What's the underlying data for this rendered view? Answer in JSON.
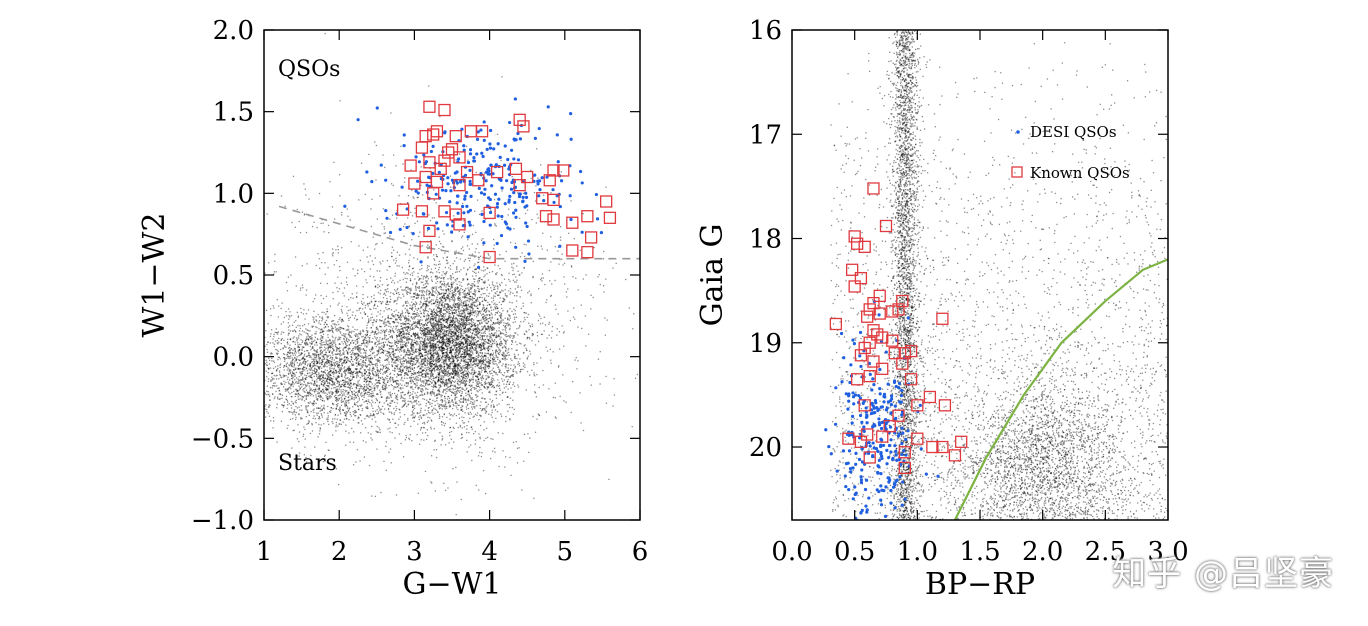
{
  "chart_data": [
    {
      "type": "scatter",
      "xlabel": "G−W1",
      "ylabel": "W1−W2",
      "xlim": [
        1,
        6
      ],
      "ylim": [
        -1.0,
        2.0
      ],
      "xticks": [
        "1",
        "2",
        "3",
        "4",
        "5",
        "6"
      ],
      "yticks": [
        "−1.0",
        "−0.5",
        "0.0",
        "0.5",
        "1.0",
        "1.5",
        "2.0"
      ],
      "annotations": [
        "QSOs",
        "Stars"
      ],
      "divider": {
        "style": "dashed",
        "points": [
          [
            1.2,
            0.92
          ],
          [
            3.0,
            0.68
          ],
          [
            4.0,
            0.6
          ],
          [
            6.0,
            0.6
          ]
        ]
      },
      "series": [
        {
          "role": "background-stars",
          "color": "#000000",
          "clusters": [
            {
              "cx": 3.45,
              "cy": 0.08,
              "sx": 0.45,
              "sy": 0.22,
              "n": 5200
            },
            {
              "cx": 1.9,
              "cy": -0.08,
              "sx": 0.5,
              "sy": 0.17,
              "n": 2600
            },
            {
              "cx": 3.2,
              "cy": 0.25,
              "sx": 1.2,
              "sy": 0.45,
              "n": 1400
            }
          ]
        },
        {
          "role": "DESI QSOs",
          "color": "#1f5fe0",
          "clusters": [
            {
              "cx": 3.95,
              "cy": 1.05,
              "sx": 0.6,
              "sy": 0.2,
              "n": 260
            }
          ]
        },
        {
          "role": "Known QSOs",
          "color": "#e0393e",
          "marker": "open-square",
          "points": [
            [
              3.2,
              1.53
            ],
            [
              3.4,
              1.51
            ],
            [
              3.3,
              1.38
            ],
            [
              3.25,
              1.36
            ],
            [
              3.15,
              1.35
            ],
            [
              3.55,
              1.35
            ],
            [
              3.75,
              1.38
            ],
            [
              3.9,
              1.38
            ],
            [
              4.4,
              1.45
            ],
            [
              4.45,
              1.41
            ],
            [
              3.1,
              1.28
            ],
            [
              3.5,
              1.27
            ],
            [
              3.45,
              1.25
            ],
            [
              3.6,
              1.22
            ],
            [
              3.2,
              1.19
            ],
            [
              3.4,
              1.2
            ],
            [
              2.95,
              1.17
            ],
            [
              3.35,
              1.15
            ],
            [
              3.7,
              1.13
            ],
            [
              4.1,
              1.13
            ],
            [
              4.35,
              1.15
            ],
            [
              4.85,
              1.14
            ],
            [
              4.98,
              1.14
            ],
            [
              3.15,
              1.1
            ],
            [
              3.3,
              1.07
            ],
            [
              3.85,
              1.08
            ],
            [
              4.5,
              1.1
            ],
            [
              4.8,
              1.08
            ],
            [
              3.0,
              1.06
            ],
            [
              3.6,
              1.05
            ],
            [
              4.4,
              1.05
            ],
            [
              3.25,
              1.0
            ],
            [
              4.7,
              0.97
            ],
            [
              4.85,
              0.96
            ],
            [
              2.85,
              0.9
            ],
            [
              3.1,
              0.89
            ],
            [
              3.4,
              0.89
            ],
            [
              3.55,
              0.87
            ],
            [
              4.0,
              0.88
            ],
            [
              4.75,
              0.86
            ],
            [
              4.85,
              0.84
            ],
            [
              5.3,
              0.86
            ],
            [
              5.6,
              0.85
            ],
            [
              3.6,
              0.81
            ],
            [
              3.2,
              0.77
            ],
            [
              5.1,
              0.82
            ],
            [
              5.35,
              0.73
            ],
            [
              3.15,
              0.67
            ],
            [
              5.1,
              0.65
            ],
            [
              5.3,
              0.64
            ],
            [
              4.0,
              0.61
            ],
            [
              5.55,
              0.95
            ]
          ]
        }
      ]
    },
    {
      "type": "scatter",
      "xlabel": "BP−RP",
      "ylabel": "Gaia G",
      "xlim": [
        0.0,
        3.0
      ],
      "ylim": [
        20.7,
        16.0
      ],
      "xticks": [
        "0.0",
        "0.5",
        "1.0",
        "1.5",
        "2.0",
        "2.5",
        "3.0"
      ],
      "yticks": [
        "16",
        "17",
        "18",
        "19",
        "20"
      ],
      "legend": {
        "placement": "top-right",
        "entries": [
          "DESI QSOs",
          "Known QSOs"
        ]
      },
      "curve": {
        "color": "#7cb342",
        "points": [
          [
            1.3,
            20.7
          ],
          [
            1.55,
            20.1
          ],
          [
            1.85,
            19.5
          ],
          [
            2.15,
            19.0
          ],
          [
            2.5,
            18.6
          ],
          [
            2.8,
            18.3
          ],
          [
            3.0,
            18.2
          ]
        ]
      },
      "series": [
        {
          "role": "background-stars",
          "color": "#000000",
          "clusters": [
            {
              "band_x": [
                0.82,
                0.98
              ],
              "g_range": [
                16.0,
                20.7
              ],
              "n": 3200
            },
            {
              "cx": 2.0,
              "cy": 20.2,
              "sx": 0.35,
              "sy": 0.45,
              "n": 2600
            },
            {
              "x_range": [
                0.3,
                3.0
              ],
              "g_range": [
                16.0,
                20.7
              ],
              "n": 2600
            }
          ]
        },
        {
          "role": "DESI QSOs",
          "color": "#1f5fe0",
          "clusters": [
            {
              "cx": 0.65,
              "cy": 19.9,
              "sx": 0.15,
              "sy": 0.45,
              "n": 260
            }
          ]
        },
        {
          "role": "Known QSOs",
          "color": "#e0393e",
          "marker": "open-square",
          "points": [
            [
              0.65,
              17.52
            ],
            [
              0.75,
              17.88
            ],
            [
              0.5,
              17.98
            ],
            [
              0.52,
              18.05
            ],
            [
              0.58,
              18.08
            ],
            [
              0.48,
              18.3
            ],
            [
              0.55,
              18.38
            ],
            [
              0.5,
              18.46
            ],
            [
              0.7,
              18.55
            ],
            [
              0.65,
              18.62
            ],
            [
              0.88,
              18.6
            ],
            [
              0.62,
              18.68
            ],
            [
              0.7,
              18.72
            ],
            [
              0.6,
              18.75
            ],
            [
              0.8,
              18.7
            ],
            [
              0.85,
              18.68
            ],
            [
              1.2,
              18.77
            ],
            [
              0.35,
              18.82
            ],
            [
              0.65,
              18.88
            ],
            [
              0.68,
              18.92
            ],
            [
              0.72,
              18.95
            ],
            [
              0.62,
              19.0
            ],
            [
              0.8,
              18.98
            ],
            [
              0.58,
              19.05
            ],
            [
              0.82,
              19.1
            ],
            [
              0.9,
              19.1
            ],
            [
              0.95,
              19.08
            ],
            [
              0.55,
              19.12
            ],
            [
              0.65,
              19.18
            ],
            [
              0.88,
              19.2
            ],
            [
              0.72,
              19.25
            ],
            [
              0.62,
              19.32
            ],
            [
              0.52,
              19.35
            ],
            [
              0.95,
              19.35
            ],
            [
              1.1,
              19.52
            ],
            [
              1.0,
              19.6
            ],
            [
              1.22,
              19.6
            ],
            [
              0.58,
              19.6
            ],
            [
              0.85,
              19.7
            ],
            [
              0.78,
              19.8
            ],
            [
              0.6,
              19.88
            ],
            [
              0.72,
              19.9
            ],
            [
              0.45,
              19.92
            ],
            [
              1.0,
              19.92
            ],
            [
              1.35,
              19.95
            ],
            [
              0.55,
              19.95
            ],
            [
              1.12,
              20.0
            ],
            [
              1.2,
              20.0
            ],
            [
              0.9,
              20.05
            ],
            [
              1.3,
              20.08
            ],
            [
              0.62,
              20.1
            ],
            [
              0.9,
              20.2
            ]
          ]
        }
      ]
    }
  ],
  "watermark": "知乎 @吕坚豪"
}
